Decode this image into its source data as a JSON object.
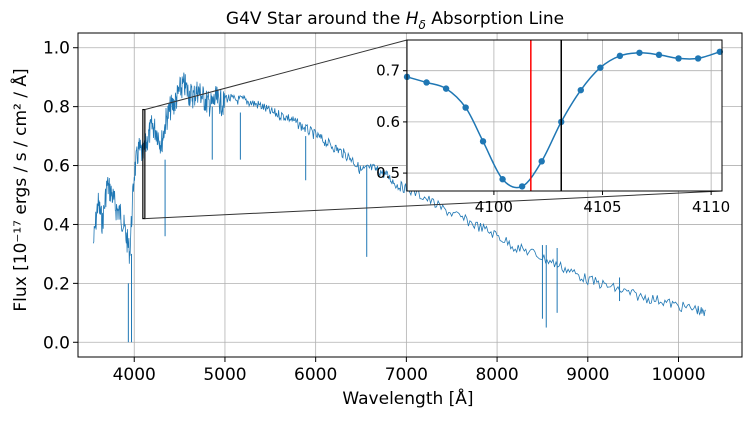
{
  "chart_data": {
    "type": "line",
    "title": "G4V Star around the H",
    "title_subscript": "δ",
    "title_suffix": " Absorption Line",
    "xlabel": "Wavelength [Å]",
    "ylabel": "Flux [10⁻¹⁷ ergs / s / cm² / Å]",
    "xlim": [
      3380,
      10700
    ],
    "ylim": [
      -0.05,
      1.05
    ],
    "xticks": [
      "4000",
      "5000",
      "6000",
      "7000",
      "8000",
      "9000",
      "10000"
    ],
    "xtick_values": [
      4000,
      5000,
      6000,
      7000,
      8000,
      9000,
      10000
    ],
    "yticks": [
      "0.0",
      "0.2",
      "0.4",
      "0.6",
      "0.8",
      "1.0"
    ],
    "ytick_values": [
      0.0,
      0.2,
      0.4,
      0.6,
      0.8,
      1.0
    ],
    "grid": true,
    "series_color": "#1f77b4",
    "series": [
      {
        "style": "line",
        "x": [
          3550,
          3600,
          3650,
          3700,
          3750,
          3800,
          3850,
          3900,
          3950,
          4000,
          4050,
          4100,
          4150,
          4200,
          4250,
          4300,
          4350,
          4400,
          4450,
          4500,
          4550,
          4600,
          4650,
          4700,
          4750,
          4800,
          4850,
          4900,
          4950,
          5000,
          5100,
          5200,
          5300,
          5400,
          5500,
          5600,
          5700,
          5800,
          5900,
          6000,
          6100,
          6200,
          6300,
          6400,
          6500,
          6600,
          6700,
          6800,
          6900,
          7000,
          7200,
          7400,
          7600,
          7800,
          8000,
          8200,
          8400,
          8600,
          8800,
          9000,
          9200,
          9400,
          9600,
          9800,
          10000,
          10200,
          10300
        ],
        "y": [
          0.38,
          0.52,
          0.45,
          0.58,
          0.55,
          0.5,
          0.48,
          0.42,
          0.35,
          0.62,
          0.7,
          0.68,
          0.74,
          0.78,
          0.76,
          0.72,
          0.8,
          0.84,
          0.86,
          0.9,
          0.92,
          0.89,
          0.88,
          0.9,
          0.88,
          0.86,
          0.85,
          0.87,
          0.86,
          0.85,
          0.84,
          0.84,
          0.83,
          0.82,
          0.8,
          0.79,
          0.78,
          0.76,
          0.74,
          0.72,
          0.7,
          0.68,
          0.66,
          0.64,
          0.6,
          0.61,
          0.6,
          0.58,
          0.55,
          0.54,
          0.51,
          0.47,
          0.44,
          0.41,
          0.38,
          0.34,
          0.32,
          0.29,
          0.26,
          0.23,
          0.21,
          0.19,
          0.17,
          0.16,
          0.14,
          0.13,
          0.11
        ]
      }
    ],
    "absorption_lines": [
      {
        "x": 3970,
        "ymin": 0.0,
        "ymax": 0.3
      },
      {
        "x": 3935,
        "ymin": 0.0,
        "ymax": 0.2
      },
      {
        "x": 4340,
        "ymin": 0.36,
        "ymax": 0.62
      },
      {
        "x": 4860,
        "ymin": 0.62,
        "ymax": 0.8
      },
      {
        "x": 5170,
        "ymin": 0.62,
        "ymax": 0.78
      },
      {
        "x": 5890,
        "ymin": 0.55,
        "ymax": 0.7
      },
      {
        "x": 6563,
        "ymin": 0.29,
        "ymax": 0.6
      },
      {
        "x": 8500,
        "ymin": 0.08,
        "ymax": 0.33
      },
      {
        "x": 8542,
        "ymin": 0.05,
        "ymax": 0.33
      },
      {
        "x": 8662,
        "ymin": 0.1,
        "ymax": 0.32
      },
      {
        "x": 9350,
        "ymin": 0.14,
        "ymax": 0.22
      }
    ],
    "zoom_box": {
      "x": [
        4095,
        4115
      ],
      "y": [
        0.42,
        0.79
      ]
    },
    "inset": {
      "xlim": [
        4096,
        4110.5
      ],
      "ylim": [
        0.465,
        0.76
      ],
      "xticks": [
        "4100",
        "4105",
        "4110"
      ],
      "xtick_values": [
        4100,
        4105,
        4110
      ],
      "yticks": [
        "0.5",
        "0.6",
        "0.7"
      ],
      "ytick_values": [
        0.5,
        0.6,
        0.7
      ],
      "grid": true,
      "marker_series": {
        "x": [
          4096.0,
          4096.9,
          4097.8,
          4098.7,
          4099.5,
          4100.4,
          4101.3,
          4102.2,
          4103.1,
          4104.0,
          4104.9,
          4105.8,
          4106.7,
          4107.6,
          4108.5,
          4109.4,
          4110.4
        ],
        "y": [
          0.688,
          0.677,
          0.665,
          0.628,
          0.562,
          0.488,
          0.474,
          0.523,
          0.6,
          0.662,
          0.706,
          0.729,
          0.735,
          0.731,
          0.724,
          0.724,
          0.737
        ]
      },
      "vlines": [
        {
          "x": 4101.7,
          "color": "#ff0000"
        },
        {
          "x": 4103.1,
          "color": "#000000"
        }
      ]
    }
  }
}
